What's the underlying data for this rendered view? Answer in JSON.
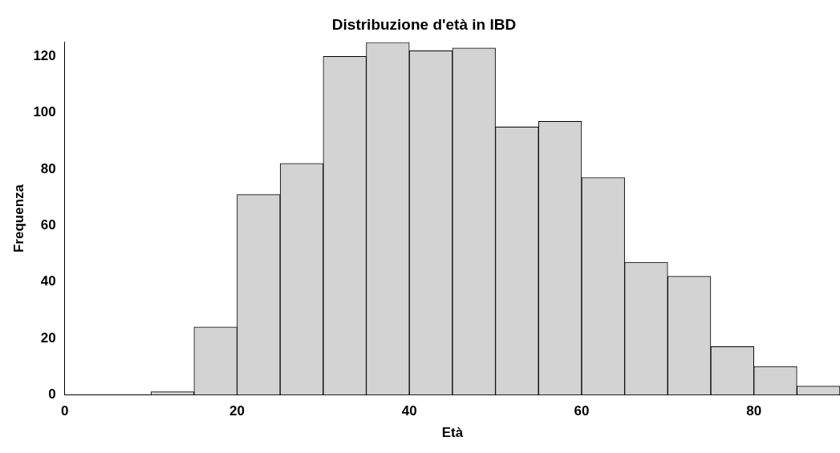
{
  "chart_data": {
    "type": "histogram",
    "title": "Distribuzione d'età in IBD",
    "xlabel": "Età",
    "ylabel": "Frequenza",
    "bins": [
      10,
      15,
      20,
      25,
      30,
      35,
      40,
      45,
      50,
      55,
      60,
      65,
      70,
      75,
      80,
      85,
      90
    ],
    "values": [
      1,
      24,
      71,
      82,
      120,
      125,
      122,
      123,
      95,
      97,
      77,
      47,
      42,
      17,
      10,
      3
    ],
    "color": "#d3d3d3",
    "xlim": [
      0,
      90
    ],
    "xticks": [
      0,
      20,
      40,
      60,
      80
    ],
    "ylim": [
      0,
      125
    ],
    "yticks": [
      0,
      20,
      40,
      60,
      80,
      100,
      120
    ],
    "grid": false,
    "legend": false
  }
}
